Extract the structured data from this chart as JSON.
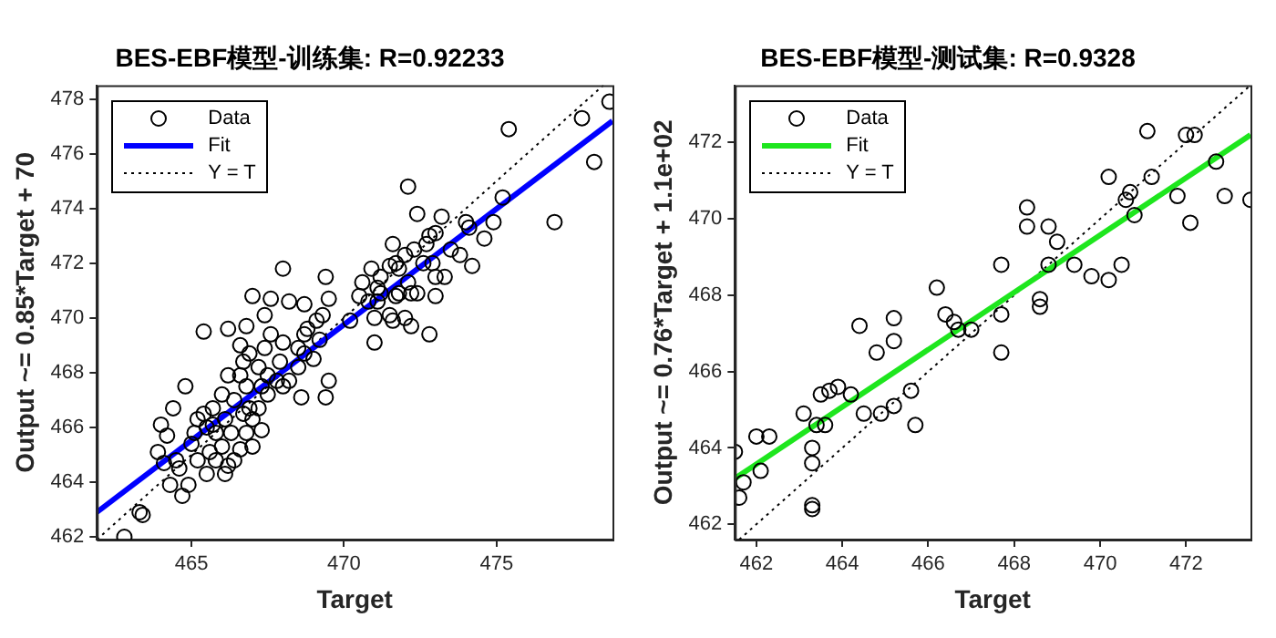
{
  "chart_data": [
    {
      "type": "scatter",
      "title": "BES-EBF模型-训练集: R=0.92233",
      "xlabel": "Target",
      "ylabel": "Output ~= 0.85*Target + 70",
      "xlim": [
        461.9,
        478.8
      ],
      "ylim": [
        461.9,
        478.5
      ],
      "xticks": [
        465,
        470,
        475
      ],
      "yticks": [
        462,
        464,
        466,
        468,
        470,
        472,
        474,
        476,
        478
      ],
      "grid": false,
      "legend": "top left",
      "series": [
        {
          "name": "Data",
          "type": "scatter",
          "marker": "circle",
          "color": "#000000",
          "x": [
            462.8,
            463.3,
            463.4,
            464.7,
            464.3,
            464.0,
            464.2,
            464.8,
            464.4,
            465.4,
            466.2,
            466.2,
            466.6,
            466.8,
            467.0,
            467.4,
            467.6,
            468.0,
            468.2,
            468.7,
            469.4,
            469.5,
            469.4,
            469.5,
            469.2,
            468.8,
            468.7,
            468.5,
            468.6,
            468.2,
            468.0,
            467.5,
            467.0,
            467.3,
            466.9,
            466.7,
            466.4,
            466.1,
            465.8,
            465.6,
            465.5,
            465.2,
            465.0,
            464.9,
            465.1,
            465.4,
            465.7,
            466.0,
            466.3,
            466.6,
            466.9,
            467.2,
            467.4,
            467.6,
            467.9,
            468.0,
            467.3,
            467.5,
            467.8,
            466.8,
            466.2,
            466.0,
            465.7,
            465.5,
            465.2,
            464.5,
            464.6,
            463.9,
            464.1,
            465.8,
            466.1,
            466.4,
            466.6,
            466.8,
            467.0,
            467.2,
            466.7,
            468.5,
            468.7,
            469.1,
            469.0,
            469.3,
            470.2,
            470.5,
            470.6,
            470.8,
            470.9,
            471.0,
            471.0,
            471.1,
            471.2,
            471.5,
            471.6,
            471.7,
            471.8,
            472.0,
            472.1,
            472.1,
            472.2,
            472.3,
            472.4,
            472.6,
            472.7,
            472.8,
            472.9,
            473.0,
            473.2,
            473.0,
            472.8,
            472.0,
            471.6,
            472.2,
            473.3,
            473.5,
            473.8,
            474.0,
            474.2,
            474.1,
            474.6,
            474.9,
            475.2,
            475.4,
            476.9,
            477.8,
            478.2,
            478.7,
            472.4,
            471.8,
            471.2,
            473.0,
            471.5,
            471.1,
            471.7
          ],
          "values": [
            462.0,
            462.9,
            462.8,
            463.5,
            463.9,
            466.1,
            465.7,
            467.5,
            466.7,
            469.5,
            469.6,
            464.6,
            469.0,
            469.7,
            470.8,
            470.1,
            470.7,
            471.8,
            470.6,
            470.5,
            471.5,
            470.7,
            467.1,
            467.7,
            469.2,
            469.6,
            468.7,
            468.2,
            467.1,
            467.7,
            467.5,
            467.2,
            465.3,
            465.9,
            466.7,
            466.5,
            467.0,
            466.3,
            465.8,
            465.1,
            464.3,
            464.8,
            465.4,
            463.9,
            465.8,
            466.5,
            466.7,
            465.3,
            465.8,
            467.9,
            468.7,
            468.2,
            468.9,
            469.4,
            468.4,
            469.1,
            467.5,
            467.9,
            467.7,
            467.5,
            467.9,
            467.2,
            466.1,
            466.0,
            466.3,
            464.8,
            464.5,
            465.1,
            464.7,
            464.8,
            464.3,
            464.8,
            465.2,
            465.8,
            466.3,
            466.7,
            468.4,
            468.9,
            469.4,
            469.9,
            468.5,
            470.1,
            469.9,
            470.8,
            471.3,
            470.6,
            471.8,
            469.1,
            470.0,
            471.1,
            471.5,
            471.9,
            472.7,
            472.0,
            471.8,
            472.3,
            471.3,
            474.8,
            470.9,
            472.5,
            473.8,
            472.0,
            472.7,
            473.0,
            472.0,
            470.8,
            473.7,
            473.1,
            469.4,
            470.0,
            469.9,
            469.7,
            471.5,
            472.5,
            472.3,
            473.5,
            471.9,
            473.3,
            472.9,
            473.5,
            474.4,
            476.9,
            473.5,
            477.3,
            475.7,
            477.9,
            470.9,
            470.9,
            470.9,
            471.5,
            470.1,
            470.6,
            470.8
          ]
        },
        {
          "name": "Fit",
          "type": "line",
          "line_style": "solid",
          "color": "#0000ff",
          "x": [
            461.9,
            478.8
          ],
          "values": [
            462.9,
            477.2
          ]
        },
        {
          "name": "Y = T",
          "type": "line",
          "line_style": "dotted",
          "color": "#000000",
          "x": [
            461.9,
            478.5
          ],
          "values": [
            461.9,
            478.5
          ]
        }
      ]
    },
    {
      "type": "scatter",
      "title": "BES-EBF模型-测试集: R=0.9328",
      "xlabel": "Target",
      "ylabel": "Output ~= 0.76*Target + 1.1e+02",
      "xlim": [
        461.5,
        473.5
      ],
      "ylim": [
        461.6,
        473.5
      ],
      "xticks": [
        462,
        464,
        466,
        468,
        470,
        472
      ],
      "yticks": [
        462,
        464,
        466,
        468,
        470,
        472
      ],
      "grid": false,
      "legend": "top left",
      "series": [
        {
          "name": "Data",
          "type": "scatter",
          "marker": "circle",
          "color": "#000000",
          "x": [
            461.5,
            461.6,
            461.7,
            462.0,
            462.3,
            462.1,
            463.1,
            463.3,
            463.3,
            463.4,
            463.6,
            463.5,
            463.7,
            463.9,
            464.2,
            463.3,
            463.3,
            464.4,
            464.5,
            464.8,
            464.9,
            465.2,
            465.2,
            465.2,
            465.6,
            465.7,
            466.2,
            466.4,
            466.6,
            466.7,
            467.0,
            467.7,
            467.7,
            467.7,
            468.3,
            468.3,
            468.6,
            468.6,
            468.8,
            468.8,
            469.0,
            469.4,
            469.8,
            470.2,
            470.2,
            470.5,
            470.6,
            470.7,
            470.8,
            471.1,
            471.2,
            471.8,
            472.1,
            472.0,
            472.2,
            472.7,
            472.9,
            473.5
          ],
          "values": [
            463.9,
            462.7,
            463.1,
            464.3,
            464.3,
            463.4,
            464.9,
            463.6,
            464.0,
            464.6,
            464.6,
            465.4,
            465.5,
            465.6,
            465.4,
            462.5,
            462.4,
            467.2,
            464.9,
            466.5,
            464.9,
            465.1,
            467.4,
            466.8,
            465.5,
            464.6,
            468.2,
            467.5,
            467.3,
            467.1,
            467.1,
            468.8,
            467.5,
            466.5,
            470.3,
            469.8,
            467.9,
            467.7,
            469.8,
            468.8,
            469.4,
            468.8,
            468.5,
            468.4,
            471.1,
            468.8,
            470.5,
            470.7,
            470.1,
            472.3,
            471.1,
            470.6,
            469.9,
            472.2,
            472.2,
            471.5,
            470.6,
            470.5
          ]
        },
        {
          "name": "Fit",
          "type": "line",
          "line_style": "solid",
          "color": "#1ee61e",
          "x": [
            461.5,
            473.5
          ],
          "values": [
            463.2,
            472.2
          ]
        },
        {
          "name": "Y = T",
          "type": "line",
          "line_style": "dotted",
          "color": "#000000",
          "x": [
            461.6,
            473.5
          ],
          "values": [
            461.6,
            473.5
          ]
        }
      ]
    }
  ]
}
